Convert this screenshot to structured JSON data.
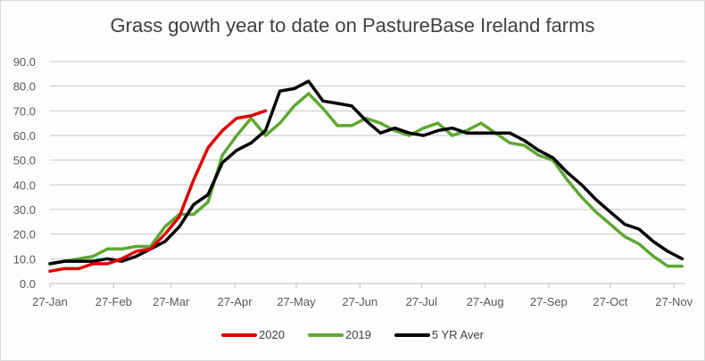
{
  "chart_data": {
    "type": "line",
    "title": "Grass gowth year to date on PastureBase Ireland farms",
    "xlabel": "",
    "ylabel": "",
    "ylim": [
      0,
      90
    ],
    "yticks": [
      "0.0",
      "10.0",
      "20.0",
      "30.0",
      "40.0",
      "50.0",
      "60.0",
      "70.0",
      "80.0",
      "90.0"
    ],
    "xticks": [
      "27-Jan",
      "27-Feb",
      "27-Mar",
      "27-Apr",
      "27-May",
      "27-Jun",
      "27-Jul",
      "27-Aug",
      "27-Sep",
      "27-Oct",
      "27-Nov"
    ],
    "xtick_weeks": [
      0,
      4.43,
      8.43,
      12.86,
      17.14,
      21.57,
      25.86,
      30.29,
      34.71,
      39.0,
      43.43
    ],
    "x_unit": "weeks from 27-Jan",
    "grid": true,
    "legend_position": "bottom",
    "series": [
      {
        "name": "2020",
        "color": "#e00000",
        "x": [
          0,
          1,
          2,
          3,
          4,
          5,
          6,
          7,
          8,
          9,
          10,
          11,
          12,
          13,
          14,
          15
        ],
        "values": [
          5,
          6,
          6,
          8,
          8,
          10,
          13,
          14,
          20,
          27,
          42,
          55,
          62,
          67,
          68,
          70
        ]
      },
      {
        "name": "2019",
        "color": "#5fa733",
        "x": [
          0,
          1,
          2,
          3,
          4,
          5,
          6,
          7,
          8,
          9,
          10,
          11,
          12,
          13,
          14,
          15,
          16,
          17,
          18,
          19,
          20,
          21,
          22,
          23,
          24,
          25,
          26,
          27,
          28,
          29,
          30,
          31,
          32,
          33,
          34,
          35,
          36,
          37,
          38,
          39,
          40,
          41,
          42,
          43,
          44
        ],
        "values": [
          8,
          9,
          10,
          11,
          14,
          14,
          15,
          15,
          23,
          28,
          28,
          33,
          52,
          60,
          67,
          60,
          65,
          72,
          77,
          71,
          64,
          64,
          67,
          65,
          62,
          60,
          63,
          65,
          60,
          62,
          65,
          61,
          57,
          56,
          52,
          50,
          42,
          35,
          29,
          24,
          19,
          16,
          11,
          7,
          7
        ]
      },
      {
        "name": "5 YR Aver",
        "color": "#000000",
        "x": [
          0,
          1,
          2,
          3,
          4,
          5,
          6,
          7,
          8,
          9,
          10,
          11,
          12,
          13,
          14,
          15,
          16,
          17,
          18,
          19,
          20,
          21,
          22,
          23,
          24,
          25,
          26,
          27,
          28,
          29,
          30,
          31,
          32,
          33,
          34,
          35,
          36,
          37,
          38,
          39,
          40,
          41,
          42,
          43,
          44
        ],
        "values": [
          8,
          9,
          9,
          9,
          10,
          9,
          11,
          14,
          17,
          23,
          32,
          36,
          49,
          54,
          57,
          62,
          78,
          79,
          82,
          74,
          73,
          72,
          66,
          61,
          63,
          61,
          60,
          62,
          63,
          61,
          61,
          61,
          61,
          58,
          54,
          51,
          45,
          40,
          34,
          29,
          24,
          22,
          17,
          13,
          10
        ]
      }
    ]
  }
}
